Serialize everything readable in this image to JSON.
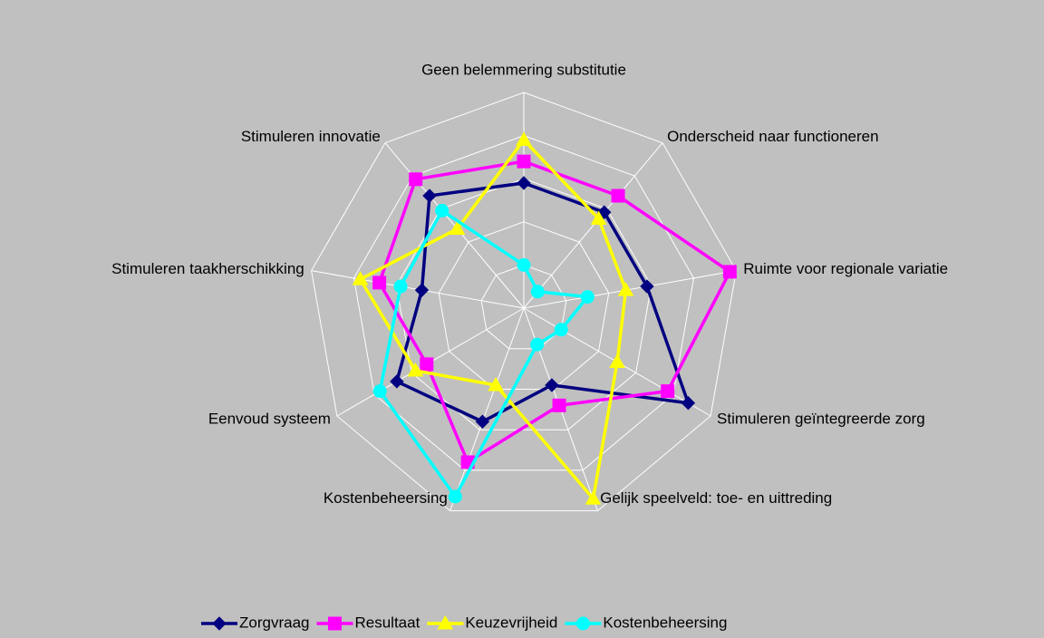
{
  "chart_data": {
    "type": "radar",
    "categories": [
      "Geen belemmering substitutie",
      "Onderscheid naar functioneren",
      "Ruimte voor regionale variatie",
      "Stimuleren geïntegreerde zorg",
      "Gelijk speelveld: toe- en uittreding",
      "Kostenbeheersing",
      "Eenvoud systeem",
      "Stimuleren taakherschikking",
      "Stimuleren innovatie"
    ],
    "series": [
      {
        "name": "Zorgvraag",
        "color": "#000080",
        "marker": "diamond",
        "values": [
          2.9,
          2.9,
          2.9,
          4.4,
          1.9,
          2.8,
          3.4,
          2.4,
          3.4
        ]
      },
      {
        "name": "Resultaat",
        "color": "#ff00ff",
        "marker": "square",
        "values": [
          3.4,
          3.4,
          4.85,
          3.85,
          2.4,
          3.8,
          2.6,
          3.4,
          3.9
        ]
      },
      {
        "name": "Keuzevrijheid",
        "color": "#ffff00",
        "marker": "triangle",
        "values": [
          3.9,
          2.7,
          2.4,
          2.5,
          4.7,
          1.9,
          2.9,
          3.85,
          2.4
        ]
      },
      {
        "name": "Kostenbeheersing",
        "color": "#00ffff",
        "marker": "circle",
        "values": [
          1.0,
          0.5,
          1.5,
          1.0,
          0.9,
          4.65,
          3.85,
          2.9,
          2.95
        ]
      }
    ],
    "rlim": [
      0,
      5
    ],
    "rticks": [
      0,
      1,
      2,
      3,
      4,
      5
    ],
    "grid": true,
    "legend": "bottom"
  }
}
